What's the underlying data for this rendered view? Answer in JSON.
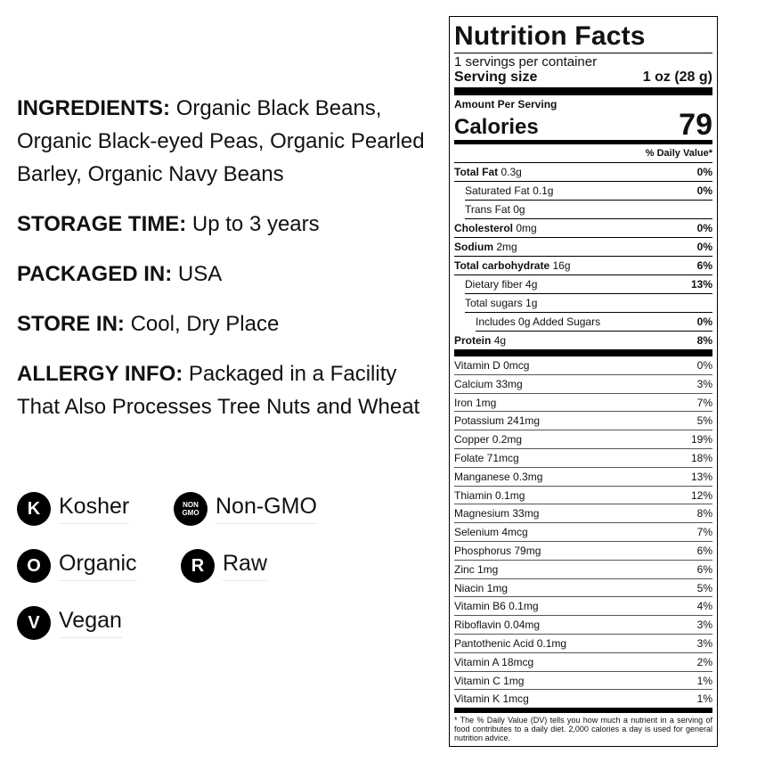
{
  "info": [
    {
      "label": "INGREDIENTS:",
      "value": "Organic Black Beans, Organic Black-eyed Peas, Organic Pearled Barley, Organic Navy Beans"
    },
    {
      "label": "STORAGE TIME:",
      "value": "Up to 3 years"
    },
    {
      "label": "PACKAGED IN:",
      "value": "USA"
    },
    {
      "label": "STORE IN:",
      "value": "Cool, Dry Place"
    },
    {
      "label": "ALLERGY INFO:",
      "value": "Packaged in a Facility That Also Processes Tree Nuts and Wheat"
    }
  ],
  "badges": [
    {
      "icon": "kosher-icon",
      "glyph": "K",
      "label": "Kosher"
    },
    {
      "icon": "non-gmo-icon",
      "glyph": "NON GMO",
      "label": "Non-GMO"
    },
    {
      "icon": "organic-icon",
      "glyph": "O",
      "label": "Organic"
    },
    {
      "icon": "raw-icon",
      "glyph": "R",
      "label": "Raw"
    },
    {
      "icon": "vegan-icon",
      "glyph": "V",
      "label": "Vegan"
    }
  ],
  "label": {
    "title": "Nutrition Facts",
    "servings": "1 servings per container",
    "serving_size_label": "Serving size",
    "serving_size": "1 oz (28 g)",
    "amount_per_serving": "Amount Per Serving",
    "calories_label": "Calories",
    "calories": "79",
    "dv_header": "% Daily Value*",
    "nutrients": [
      {
        "name": "Total Fat",
        "amount": "0.3g",
        "dv": "0%",
        "bold": true,
        "indent": 0
      },
      {
        "name": "Saturated Fat",
        "amount": "0.1g",
        "dv": "0%",
        "bold": false,
        "indent": 1
      },
      {
        "name": "Trans Fat",
        "amount": "0g",
        "dv": "",
        "bold": false,
        "indent": 1
      },
      {
        "name": "Cholesterol",
        "amount": "0mg",
        "dv": "0%",
        "bold": true,
        "indent": 0
      },
      {
        "name": "Sodium",
        "amount": "2mg",
        "dv": "0%",
        "bold": true,
        "indent": 0
      },
      {
        "name": "Total carbohydrate",
        "amount": "16g",
        "dv": "6%",
        "bold": true,
        "indent": 0
      },
      {
        "name": "Dietary fiber",
        "amount": "4g",
        "dv": "13%",
        "bold": false,
        "indent": 1
      },
      {
        "name": "Total sugars",
        "amount": "1g",
        "dv": "",
        "bold": false,
        "indent": 1
      },
      {
        "name": "Includes 0g Added Sugars",
        "amount": "",
        "dv": "0%",
        "bold": false,
        "indent": 2
      },
      {
        "name": "Protein",
        "amount": "4g",
        "dv": "8%",
        "bold": true,
        "indent": 0
      }
    ],
    "vitamins": [
      {
        "name": "Vitamin D 0mcg",
        "dv": "0%"
      },
      {
        "name": "Calcium 33mg",
        "dv": "3%"
      },
      {
        "name": "Iron 1mg",
        "dv": "7%"
      },
      {
        "name": "Potassium 241mg",
        "dv": "5%"
      },
      {
        "name": "Copper 0.2mg",
        "dv": "19%"
      },
      {
        "name": "Folate 71mcg",
        "dv": "18%"
      },
      {
        "name": "Manganese 0.3mg",
        "dv": "13%"
      },
      {
        "name": "Thiamin 0.1mg",
        "dv": "12%"
      },
      {
        "name": "Magnesium 33mg",
        "dv": "8%"
      },
      {
        "name": "Selenium 4mcg",
        "dv": "7%"
      },
      {
        "name": "Phosphorus 79mg",
        "dv": "6%"
      },
      {
        "name": "Zinc 1mg",
        "dv": "6%"
      },
      {
        "name": "Niacin 1mg",
        "dv": "5%"
      },
      {
        "name": "Vitamin B6 0.1mg",
        "dv": "4%"
      },
      {
        "name": "Riboflavin 0.04mg",
        "dv": "3%"
      },
      {
        "name": "Pantothenic Acid 0.1mg",
        "dv": "3%"
      },
      {
        "name": "Vitamin A 18mcg",
        "dv": "2%"
      },
      {
        "name": "Vitamin C 1mg",
        "dv": "1%"
      },
      {
        "name": "Vitamin K 1mcg",
        "dv": "1%"
      }
    ],
    "footnote": "* The % Daily Value (DV) tells you how much a nutrient in a serving of food contributes to a daily diet. 2,000 calories a day is used for general nutrition advice."
  }
}
